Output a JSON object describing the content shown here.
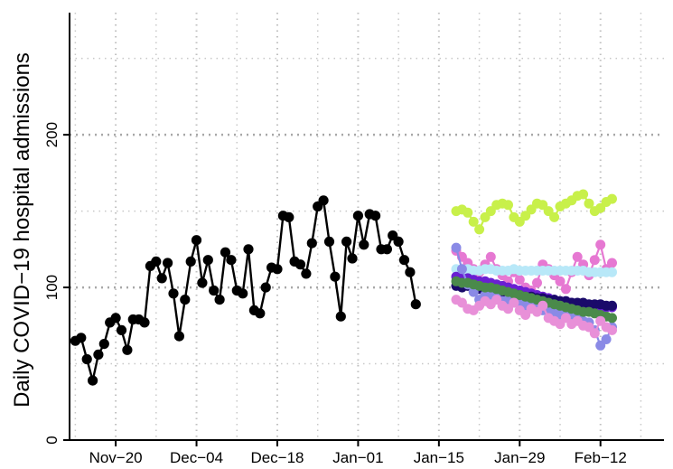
{
  "chart_data": {
    "type": "line",
    "title": "",
    "xlabel": "",
    "ylabel": "Daily COVID−19 hospital admissions",
    "ylim": [
      0,
      280
    ],
    "xlim": [
      "2020-11-12",
      "2021-02-23"
    ],
    "x_ticks": [
      {
        "label": "Nov−20",
        "date": "2020-11-20"
      },
      {
        "label": "Dec−04",
        "date": "2020-12-04"
      },
      {
        "label": "Dec−18",
        "date": "2020-12-18"
      },
      {
        "label": "Jan−01",
        "date": "2021-01-01"
      },
      {
        "label": "Jan−15",
        "date": "2021-01-15"
      },
      {
        "label": "Jan−29",
        "date": "2021-01-29"
      },
      {
        "label": "Feb−12",
        "date": "2021-02-12"
      }
    ],
    "y_ticks": [
      0,
      100,
      200
    ],
    "y_minor_grid": [
      50,
      150,
      250
    ],
    "grid": true,
    "legend": "none",
    "observed": {
      "color": "#000000",
      "start_date": "2020-11-13",
      "values": [
        65,
        67,
        53,
        39,
        56,
        63,
        77,
        80,
        72,
        59,
        79,
        79,
        77,
        114,
        117,
        106,
        116,
        96,
        68,
        92,
        117,
        131,
        103,
        118,
        98,
        92,
        123,
        118,
        98,
        96,
        125,
        85,
        83,
        100,
        113,
        112,
        147,
        146,
        117,
        115,
        109,
        129,
        153,
        157,
        130,
        107,
        81,
        130,
        119,
        147,
        128,
        148,
        147,
        125,
        125,
        134,
        130,
        118,
        110,
        89
      ]
    },
    "forecast_start_date": "2021-01-18",
    "forecasts": [
      {
        "color": "#c8f04a",
        "values": [
          150,
          151,
          149,
          143,
          138,
          146,
          150,
          154,
          155,
          154,
          146,
          143,
          147,
          151,
          155,
          154,
          150,
          146,
          153,
          155,
          157,
          160,
          161,
          155,
          150,
          152,
          156,
          158
        ]
      },
      {
        "color": "#e678d2",
        "values": [
          124,
          120,
          116,
          112,
          110,
          115,
          120,
          112,
          108,
          104,
          110,
          105,
          100,
          98,
          103,
          115,
          112,
          108,
          104,
          99,
          110,
          120,
          115,
          108,
          118,
          128,
          112,
          116
        ]
      },
      {
        "color": "#b8e8f8",
        "values": [
          112,
          112,
          112,
          111,
          111,
          112,
          112,
          111,
          111,
          111,
          112,
          111,
          111,
          111,
          111,
          111,
          111,
          111,
          111,
          111,
          111,
          111,
          111,
          110,
          110,
          110,
          110,
          110
        ]
      },
      {
        "color": "#6a1fd2",
        "values": [
          107,
          106,
          106,
          105,
          104,
          104,
          103,
          102,
          101,
          100,
          99,
          98,
          97,
          96,
          95,
          94,
          93,
          92,
          91,
          91,
          90,
          89,
          89,
          88,
          88,
          87,
          87,
          87
        ]
      },
      {
        "color": "#1a0a6a",
        "values": [
          101,
          100,
          101,
          100,
          99,
          99,
          98,
          97,
          96,
          96,
          95,
          95,
          94,
          94,
          93,
          93,
          92,
          92,
          91,
          91,
          90,
          90,
          90,
          89,
          89,
          89,
          88,
          88
        ]
      },
      {
        "color": "#8a8ae6",
        "values": [
          126,
          112,
          102,
          97,
          92,
          95,
          94,
          93,
          91,
          92,
          90,
          89,
          88,
          87,
          86,
          85,
          84,
          83,
          82,
          81,
          80,
          79,
          78,
          77,
          72,
          62,
          66,
          74
        ]
      },
      {
        "color": "#4a8a4a",
        "values": [
          104,
          103,
          103,
          102,
          101,
          100,
          100,
          99,
          98,
          97,
          96,
          95,
          94,
          93,
          92,
          91,
          90,
          89,
          88,
          87,
          86,
          85,
          84,
          84,
          83,
          82,
          81,
          80
        ]
      },
      {
        "color": "#e890d8",
        "values": [
          92,
          90,
          86,
          85,
          88,
          91,
          89,
          92,
          88,
          86,
          90,
          85,
          82,
          86,
          84,
          88,
          80,
          78,
          76,
          80,
          76,
          78,
          75,
          74,
          70,
          78,
          74,
          72
        ]
      }
    ]
  }
}
